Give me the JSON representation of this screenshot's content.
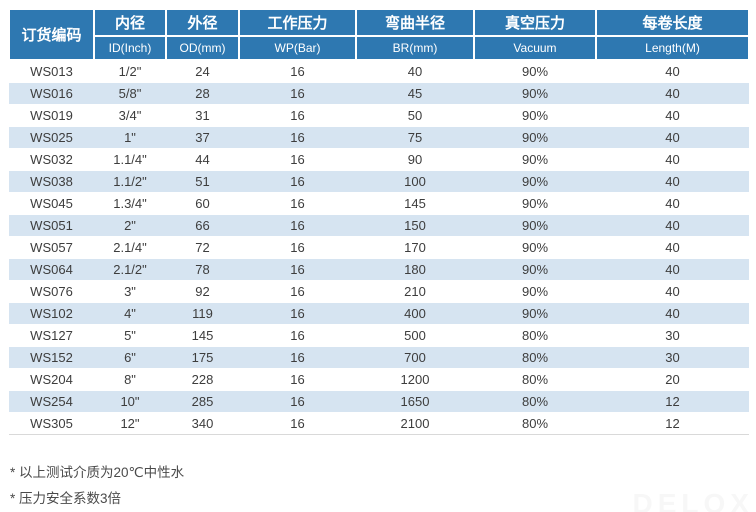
{
  "colors": {
    "header_bg": "#2E78B1",
    "stripe_bg": "#D6E4F1",
    "header_text": "#FFFFFF",
    "body_text": "#3D3D3D",
    "table_bottom_border": "#D9D9D9",
    "watermark_text": "#F7F7F7"
  },
  "table": {
    "order_code_header": "订货编码",
    "columns": [
      {
        "zh": "内径",
        "en": "ID(Inch)"
      },
      {
        "zh": "外径",
        "en": "OD(mm)"
      },
      {
        "zh": "工作压力",
        "en": "WP(Bar)"
      },
      {
        "zh": "弯曲半径",
        "en": "BR(mm)"
      },
      {
        "zh": "真空压力",
        "en": "Vacuum"
      },
      {
        "zh": "每卷长度",
        "en": "Length(M)"
      }
    ],
    "rows": [
      [
        "WS013",
        "1/2\"",
        "24",
        "16",
        "40",
        "90%",
        "40"
      ],
      [
        "WS016",
        "5/8\"",
        "28",
        "16",
        "45",
        "90%",
        "40"
      ],
      [
        "WS019",
        "3/4\"",
        "31",
        "16",
        "50",
        "90%",
        "40"
      ],
      [
        "WS025",
        "1\"",
        "37",
        "16",
        "75",
        "90%",
        "40"
      ],
      [
        "WS032",
        "1.1/4\"",
        "44",
        "16",
        "90",
        "90%",
        "40"
      ],
      [
        "WS038",
        "1.1/2\"",
        "51",
        "16",
        "100",
        "90%",
        "40"
      ],
      [
        "WS045",
        "1.3/4\"",
        "60",
        "16",
        "145",
        "90%",
        "40"
      ],
      [
        "WS051",
        "2\"",
        "66",
        "16",
        "150",
        "90%",
        "40"
      ],
      [
        "WS057",
        "2.1/4\"",
        "72",
        "16",
        "170",
        "90%",
        "40"
      ],
      [
        "WS064",
        "2.1/2\"",
        "78",
        "16",
        "180",
        "90%",
        "40"
      ],
      [
        "WS076",
        "3\"",
        "92",
        "16",
        "210",
        "90%",
        "40"
      ],
      [
        "WS102",
        "4\"",
        "119",
        "16",
        "400",
        "90%",
        "40"
      ],
      [
        "WS127",
        "5\"",
        "145",
        "16",
        "500",
        "80%",
        "30"
      ],
      [
        "WS152",
        "6\"",
        "175",
        "16",
        "700",
        "80%",
        "30"
      ],
      [
        "WS204",
        "8\"",
        "228",
        "16",
        "1200",
        "80%",
        "20"
      ],
      [
        "WS254",
        "10\"",
        "285",
        "16",
        "1650",
        "80%",
        "12"
      ],
      [
        "WS305",
        "12\"",
        "340",
        "16",
        "2100",
        "80%",
        "12"
      ]
    ]
  },
  "notes": [
    "* 以上测试介质为20℃中性水",
    "* 压力安全系数3倍"
  ],
  "watermark": "DELOX"
}
